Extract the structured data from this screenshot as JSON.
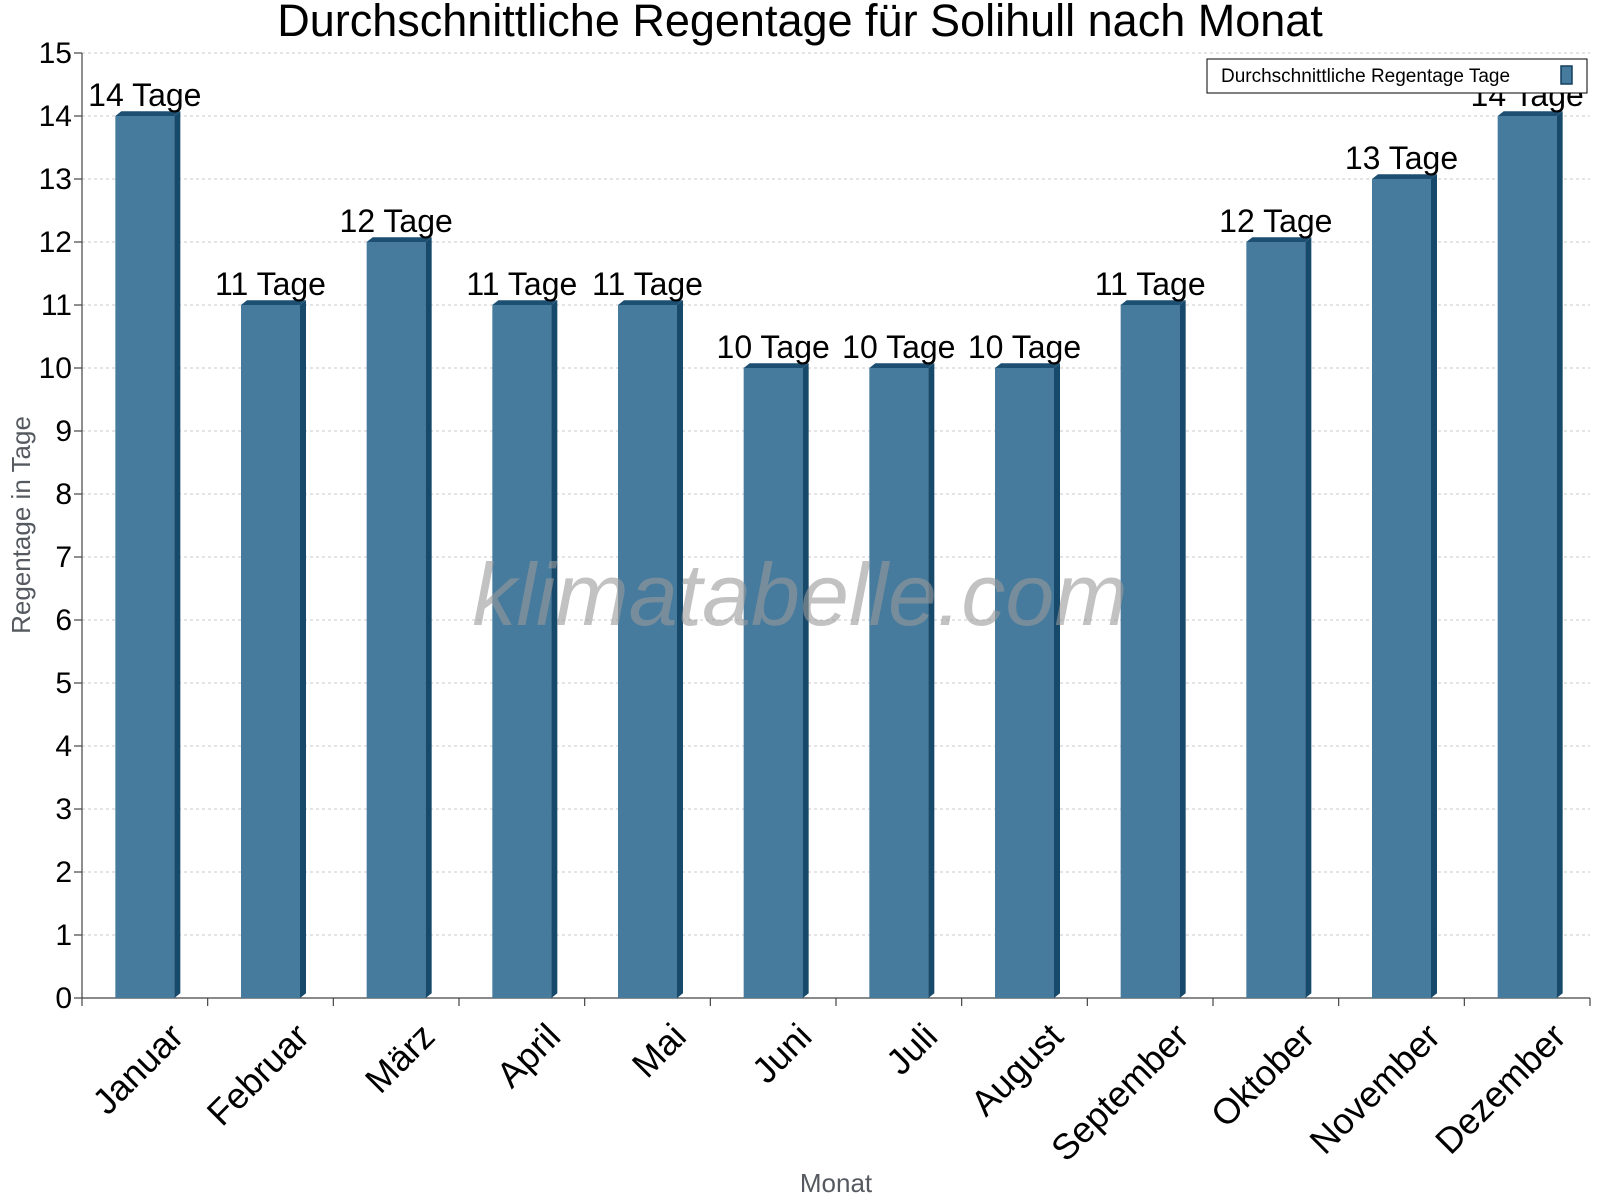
{
  "chart_data": {
    "type": "bar",
    "title": "Durchschnittliche Regentage für Solihull nach Monat",
    "xlabel": "Monat",
    "ylabel": "Regentage in Tage",
    "ylim": [
      0,
      15
    ],
    "yticks": [
      0,
      1,
      2,
      3,
      4,
      5,
      6,
      7,
      8,
      9,
      10,
      11,
      12,
      13,
      14,
      15
    ],
    "grid": true,
    "legend_position": "top-right",
    "categories": [
      "Januar",
      "Februar",
      "März",
      "April",
      "Mai",
      "Juni",
      "Juli",
      "August",
      "September",
      "Oktober",
      "November",
      "Dezember"
    ],
    "series": [
      {
        "name": "Durchschnittliche Regentage Tage",
        "color": "#467b9d",
        "values": [
          14,
          11,
          12,
          11,
          11,
          10,
          10,
          10,
          11,
          12,
          13,
          14
        ],
        "data_labels": [
          "14 Tage",
          "11 Tage",
          "12 Tage",
          "11 Tage",
          "11 Tage",
          "10 Tage",
          "10 Tage",
          "10 Tage",
          "11 Tage",
          "12 Tage",
          "13 Tage",
          "14 Tage"
        ]
      }
    ],
    "watermark": "klimatabelle.com"
  }
}
